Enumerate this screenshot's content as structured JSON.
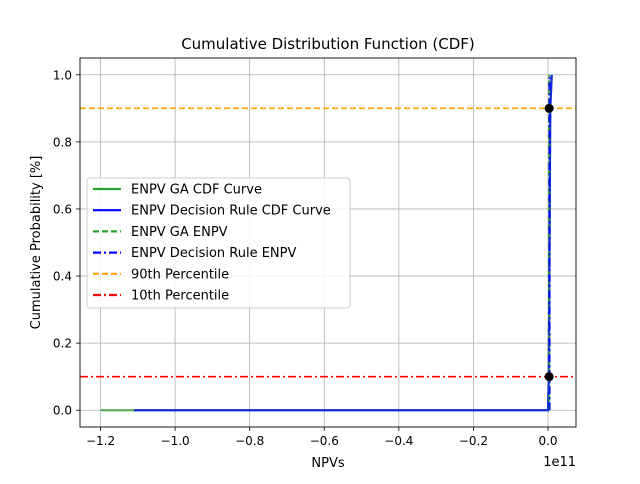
{
  "chart_data": {
    "type": "line",
    "title": "Cumulative Distribution Function (CDF)",
    "xlabel": "NPVs",
    "ylabel": "Cumulative Probability [%]",
    "x_offset_label": "1e11",
    "xlim": [
      -1.255,
      0.075
    ],
    "ylim": [
      -0.05,
      1.05
    ],
    "x_ticks": [
      -1.2,
      -1.0,
      -0.8,
      -0.6,
      -0.4,
      -0.2,
      0.0
    ],
    "x_tick_labels": [
      "−1.2",
      "−1.0",
      "−0.8",
      "−0.6",
      "−0.4",
      "−0.2",
      "0.0"
    ],
    "y_ticks": [
      0.0,
      0.2,
      0.4,
      0.6,
      0.8,
      1.0
    ],
    "y_tick_labels": [
      "0.0",
      "0.2",
      "0.4",
      "0.6",
      "0.8",
      "1.0"
    ],
    "grid": true,
    "legend_position": "center-left",
    "series": [
      {
        "name": "ENPV GA CDF Curve",
        "style": "solid",
        "color": "#2ca02c",
        "x": [
          -1.2,
          -1.11,
          -0.5,
          -0.1,
          0.0,
          0.002,
          0.004,
          0.006,
          0.01
        ],
        "y": [
          0.0,
          0.0,
          0.0,
          0.0,
          0.0,
          0.1,
          0.5,
          0.9,
          1.0
        ]
      },
      {
        "name": "ENPV Decision Rule CDF Curve",
        "style": "solid",
        "color": "#0000ff",
        "x": [
          -1.11,
          -0.5,
          -0.1,
          0.0,
          0.002,
          0.004,
          0.006,
          0.01
        ],
        "y": [
          0.0,
          0.0,
          0.0,
          0.0,
          0.1,
          0.5,
          0.9,
          1.0
        ]
      },
      {
        "name": "ENPV GA ENPV",
        "style": "dashed",
        "color": "#2ca02c",
        "x": [
          0.003,
          0.003
        ],
        "y": [
          0.0,
          1.0
        ]
      },
      {
        "name": "ENPV Decision Rule ENPV",
        "style": "dashdot",
        "color": "#0000ff",
        "x": [
          0.004,
          0.004
        ],
        "y": [
          0.0,
          1.0
        ]
      },
      {
        "name": "90th Percentile",
        "style": "dashed",
        "color": "#ffa500",
        "hline": 0.9
      },
      {
        "name": "10th Percentile",
        "style": "dashdot",
        "color": "#ff0000",
        "hline": 0.1
      }
    ],
    "markers": [
      {
        "x": 0.003,
        "y": 0.9
      },
      {
        "x": 0.003,
        "y": 0.1
      }
    ]
  }
}
